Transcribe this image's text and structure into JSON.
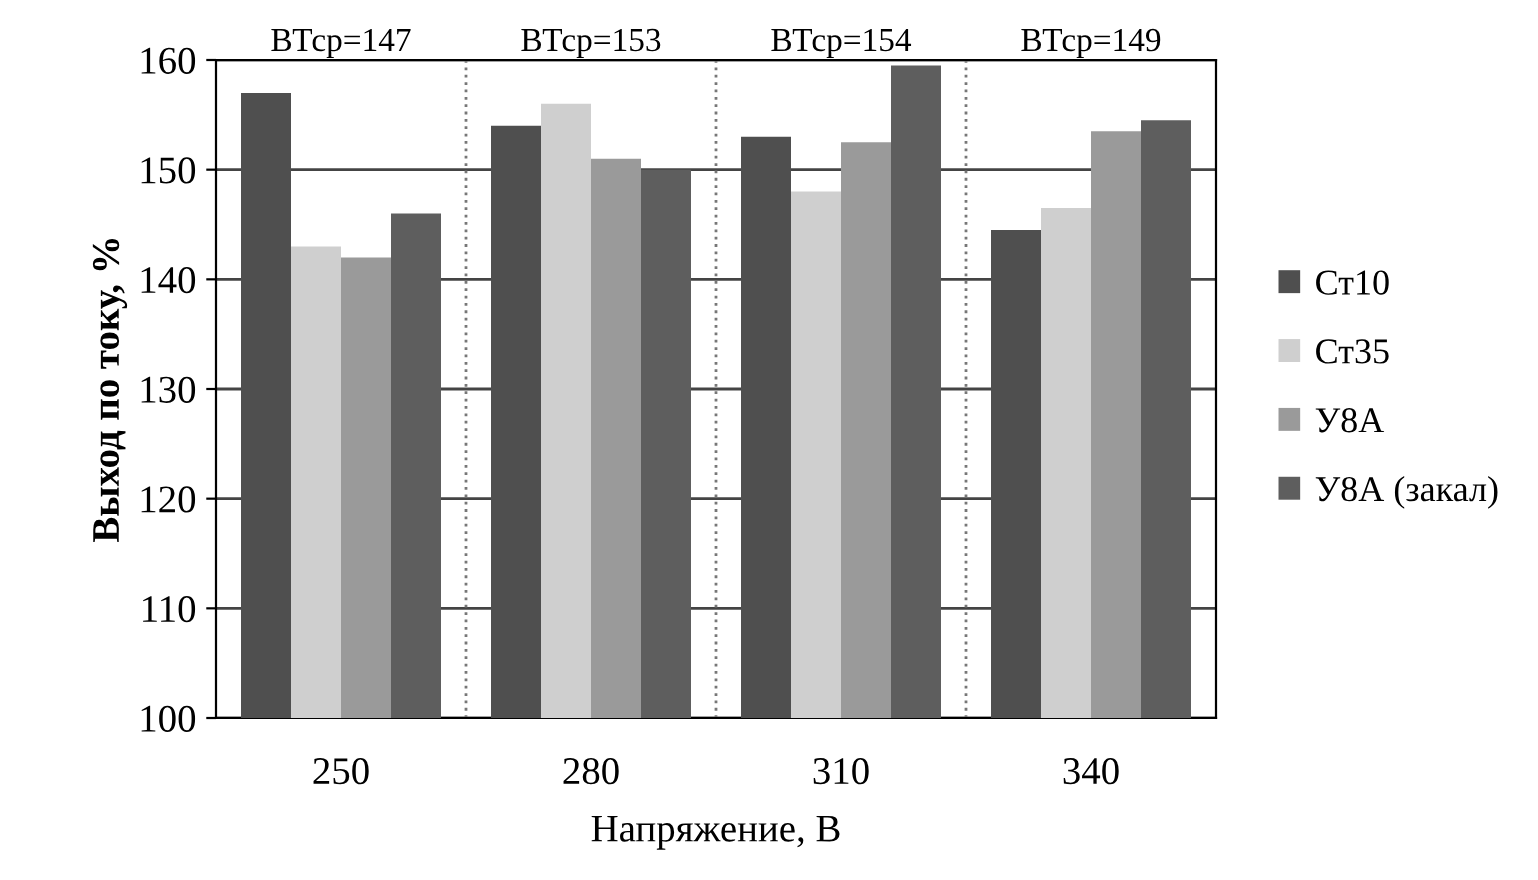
{
  "chart_data": {
    "type": "bar",
    "xlabel": "Напряжение, В",
    "ylabel": "Выход по току, %",
    "categories": [
      "250",
      "280",
      "310",
      "340"
    ],
    "series": [
      {
        "name": "Ст10",
        "color": "#4f4f4f",
        "values": [
          157,
          154,
          153,
          144.5
        ]
      },
      {
        "name": "Ст35",
        "color": "#cfcfcf",
        "values": [
          143,
          156,
          148,
          146.5
        ]
      },
      {
        "name": "У8А",
        "color": "#9a9a9a",
        "values": [
          142,
          151,
          152.5,
          153.5
        ]
      },
      {
        "name": "У8А (закал)",
        "color": "#5e5e5e",
        "values": [
          146,
          150,
          159.5,
          154.5
        ]
      }
    ],
    "annotations": [
      "ВТср=147",
      "ВТср=153",
      "ВТср=154",
      "ВТср=149"
    ],
    "ylim": [
      100,
      160
    ],
    "yticks": [
      100,
      110,
      120,
      130,
      140,
      150,
      160
    ],
    "grid": "y",
    "legend": "right"
  }
}
